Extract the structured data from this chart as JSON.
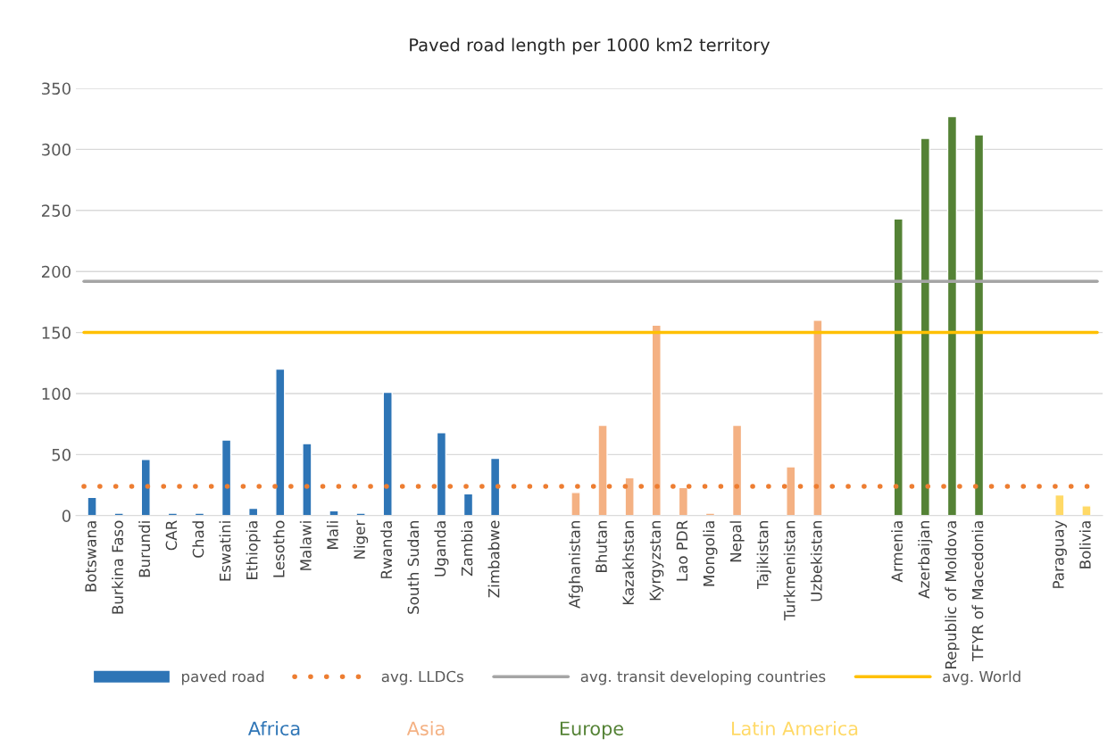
{
  "chart_data": {
    "type": "bar",
    "title": "Paved road length per 1000 km2 territory",
    "categories": [
      "Botswana",
      "Burkina Faso",
      "Burundi",
      "CAR",
      "Chad",
      "Eswatini",
      "Ethiopia",
      "Lesotho",
      "Malawi",
      "Mali",
      "Niger",
      "Rwanda",
      "South Sudan",
      "Uganda",
      "Zambia",
      "Zimbabwe",
      null,
      null,
      "Afghanistan",
      "Bhutan",
      "Kazakhstan",
      "Kyrgyzstan",
      "Lao PDR",
      "Mongolia",
      "Nepal",
      "Tajikistan",
      "Turkmenistan",
      "Uzbekistan",
      null,
      null,
      "Armenia",
      "Azerbaijan",
      "Republic of Moldova",
      "TFYR of Macedonia",
      null,
      null,
      "Paraguay",
      "Bolivia"
    ],
    "series": [
      {
        "name": "paved road",
        "color": "#2e75b6",
        "values": [
          15,
          2,
          46,
          2,
          2,
          62,
          6,
          120,
          59,
          4,
          2,
          101,
          null,
          68,
          18,
          47,
          null,
          null,
          19,
          74,
          31,
          156,
          23,
          2,
          74,
          null,
          40,
          160,
          null,
          null,
          243,
          309,
          327,
          312,
          null,
          null,
          17,
          8
        ],
        "colors": [
          "#2e75b6",
          "#2e75b6",
          "#2e75b6",
          "#2e75b6",
          "#2e75b6",
          "#2e75b6",
          "#2e75b6",
          "#2e75b6",
          "#2e75b6",
          "#2e75b6",
          "#2e75b6",
          "#2e75b6",
          "#2e75b6",
          "#2e75b6",
          "#2e75b6",
          "#2e75b6",
          "#2e75b6",
          "#2e75b6",
          "#f4b183",
          "#f4b183",
          "#f4b183",
          "#f4b183",
          "#f4b183",
          "#f4b183",
          "#f4b183",
          "#f4b183",
          "#f4b183",
          "#f4b183",
          "#f4b183",
          "#f4b183",
          "#548235",
          "#548235",
          "#548235",
          "#548235",
          "#548235",
          "#548235",
          "#ffd966",
          "#ffd966"
        ]
      }
    ],
    "ref_lines": [
      {
        "axis": "y",
        "value": 24,
        "label": "avg. LLDCs",
        "color": "#ed7d31",
        "line_style": "dotted"
      },
      {
        "axis": "y",
        "value": 192,
        "label": "avg. transit developing countries",
        "color": "#a5a5a5",
        "line_style": "solid"
      },
      {
        "axis": "y",
        "value": 150,
        "label": "avg. World",
        "color": "#ffc000",
        "line_style": "solid"
      }
    ],
    "annotations": [
      "Africa",
      "Asia",
      "Europe",
      "Latin America"
    ],
    "ylim": [
      0,
      350
    ],
    "yticks": [
      0,
      50,
      100,
      150,
      200,
      250,
      300,
      350
    ],
    "grid": "y",
    "legend": "bottom"
  }
}
